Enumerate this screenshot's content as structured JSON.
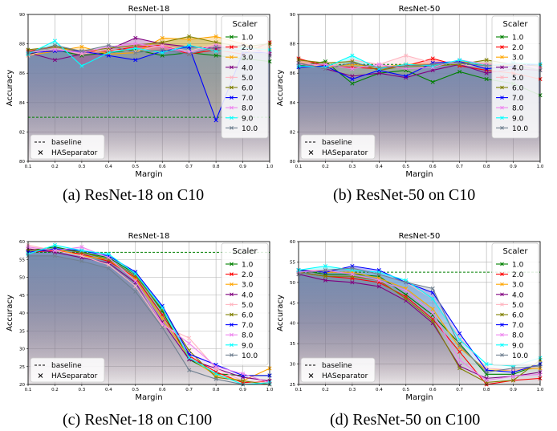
{
  "scaler_colors": [
    "#008000",
    "#ff0000",
    "#ffa500",
    "#800080",
    "#ffb6c1",
    "#808000",
    "#0000ff",
    "#ee82ee",
    "#00ffff",
    "#708090"
  ],
  "captions": [
    "(a) ResNet-18 on C10",
    "(b) ResNet-50 on C10",
    "(c) ResNet-18 on C100",
    "(d) ResNet-50 on C100"
  ],
  "chart_data": [
    {
      "type": "line",
      "title": "ResNet-18",
      "xlabel": "Margin",
      "ylabel": "Accuracy",
      "xlim": [
        0.1,
        1.0
      ],
      "ylim": [
        80,
        90
      ],
      "xticks": [
        "0.1",
        "0.2",
        "0.3",
        "0.4",
        "0.5",
        "0.6",
        "0.7",
        "0.8",
        "0.9",
        "1.0"
      ],
      "yticks": [
        "80",
        "82",
        "84",
        "86",
        "88",
        "90"
      ],
      "legend_title": "Scaler",
      "legend_position": "right",
      "baseline": 83.0,
      "baseline_color": "#008000",
      "x": [
        0.1,
        0.2,
        0.3,
        0.4,
        0.5,
        0.6,
        0.7,
        0.8,
        0.9,
        1.0
      ],
      "series": [
        {
          "name": "1.0",
          "values": [
            87.3,
            87.6,
            87.2,
            87.4,
            87.6,
            87.2,
            87.4,
            87.2,
            87.0,
            86.8
          ]
        },
        {
          "name": "2.0",
          "values": [
            87.5,
            87.8,
            87.5,
            87.5,
            87.8,
            87.9,
            87.3,
            87.6,
            87.3,
            88.1
          ]
        },
        {
          "name": "3.0",
          "values": [
            87.2,
            87.5,
            87.8,
            87.3,
            87.4,
            88.4,
            88.3,
            88.5,
            88.0,
            87.5
          ]
        },
        {
          "name": "4.0",
          "values": [
            87.4,
            86.9,
            87.3,
            87.6,
            88.4,
            88.0,
            87.8,
            87.7,
            87.9,
            87.3
          ]
        },
        {
          "name": "5.0",
          "values": [
            87.2,
            87.7,
            87.3,
            87.6,
            87.5,
            87.9,
            87.5,
            88.0,
            87.6,
            87.6
          ]
        },
        {
          "name": "6.0",
          "values": [
            87.6,
            87.8,
            87.5,
            87.7,
            87.9,
            88.1,
            88.5,
            88.1,
            87.8,
            88.0
          ]
        },
        {
          "name": "7.0",
          "values": [
            87.4,
            87.5,
            87.5,
            87.2,
            86.9,
            87.5,
            87.8,
            82.8,
            87.4,
            87.4
          ]
        },
        {
          "name": "8.0",
          "values": [
            87.4,
            87.6,
            87.4,
            87.8,
            88.0,
            87.8,
            87.4,
            87.9,
            87.6,
            87.4
          ]
        },
        {
          "name": "9.0",
          "values": [
            87.3,
            88.2,
            86.5,
            87.4,
            87.7,
            87.4,
            87.9,
            87.5,
            87.7,
            87.6
          ]
        },
        {
          "name": "10.0",
          "values": [
            87.4,
            87.9,
            87.5,
            87.9,
            87.4,
            87.6,
            87.3,
            87.8,
            87.5,
            87.2
          ]
        }
      ]
    },
    {
      "type": "line",
      "title": "ResNet-50",
      "xlabel": "Margin",
      "ylabel": "Accuracy",
      "xlim": [
        0.1,
        1.0
      ],
      "ylim": [
        80,
        90
      ],
      "xticks": [
        "0.1",
        "0.2",
        "0.3",
        "0.4",
        "0.5",
        "0.6",
        "0.7",
        "0.8",
        "0.9",
        "1.0"
      ],
      "yticks": [
        "80",
        "82",
        "84",
        "86",
        "88",
        "90"
      ],
      "legend_title": "Scaler",
      "legend_position": "right",
      "baseline": 86.6,
      "baseline_color": "#008000",
      "x": [
        0.1,
        0.2,
        0.3,
        0.4,
        0.5,
        0.6,
        0.7,
        0.8,
        0.9,
        1.0
      ],
      "series": [
        {
          "name": "1.0",
          "values": [
            86.5,
            86.8,
            85.3,
            86.0,
            86.2,
            85.4,
            86.1,
            85.6,
            85.3,
            84.5
          ]
        },
        {
          "name": "2.0",
          "values": [
            87.0,
            86.5,
            86.4,
            86.3,
            86.5,
            87.0,
            86.5,
            86.2,
            86.0,
            85.6
          ]
        },
        {
          "name": "3.0",
          "values": [
            86.8,
            86.4,
            86.6,
            86.4,
            86.6,
            86.6,
            86.8,
            86.6,
            86.5,
            86.4
          ]
        },
        {
          "name": "4.0",
          "values": [
            86.7,
            86.3,
            85.8,
            86.0,
            85.7,
            86.2,
            86.6,
            86.0,
            86.3,
            86.2
          ]
        },
        {
          "name": "5.0",
          "values": [
            86.8,
            86.4,
            86.9,
            86.6,
            87.2,
            86.7,
            86.6,
            86.4,
            86.7,
            86.3
          ]
        },
        {
          "name": "6.0",
          "values": [
            86.9,
            86.7,
            86.8,
            86.2,
            86.5,
            86.5,
            86.6,
            86.9,
            86.6,
            86.5
          ]
        },
        {
          "name": "7.0",
          "values": [
            86.4,
            86.5,
            85.6,
            86.2,
            85.8,
            86.7,
            86.8,
            86.3,
            86.5,
            86.6
          ]
        },
        {
          "name": "8.0",
          "values": [
            86.6,
            86.6,
            86.3,
            86.6,
            86.3,
            86.4,
            86.9,
            86.6,
            86.6,
            86.4
          ]
        },
        {
          "name": "9.0",
          "values": [
            86.5,
            86.4,
            87.2,
            86.3,
            86.6,
            86.5,
            86.9,
            86.5,
            86.7,
            86.6
          ]
        },
        {
          "name": "10.0",
          "values": [
            86.7,
            86.3,
            86.7,
            86.4,
            86.5,
            86.6,
            86.7,
            86.5,
            86.6,
            86.2
          ]
        }
      ]
    },
    {
      "type": "line",
      "title": "ResNet-18",
      "xlabel": "Margin",
      "ylabel": "Accuracy",
      "xlim": [
        0.1,
        1.0
      ],
      "ylim": [
        20,
        60
      ],
      "xticks": [
        "0.1",
        "0.2",
        "0.3",
        "0.4",
        "0.5",
        "0.6",
        "0.7",
        "0.8",
        "0.9",
        "1.0"
      ],
      "yticks": [
        "20",
        "25",
        "30",
        "35",
        "40",
        "45",
        "50",
        "55",
        "60"
      ],
      "legend_title": "Scaler",
      "legend_position": "right",
      "baseline": 57.0,
      "baseline_color": "#008000",
      "x": [
        0.1,
        0.2,
        0.3,
        0.4,
        0.5,
        0.6,
        0.7,
        0.8,
        0.9,
        1.0
      ],
      "series": [
        {
          "name": "1.0",
          "values": [
            57.5,
            58.5,
            57.0,
            55.5,
            51.0,
            40.5,
            27.0,
            23.0,
            22.5,
            22.5
          ]
        },
        {
          "name": "2.0",
          "values": [
            57.0,
            57.5,
            56.5,
            54.5,
            50.0,
            39.5,
            28.0,
            23.5,
            20.5,
            21.0
          ]
        },
        {
          "name": "3.0",
          "values": [
            57.0,
            58.0,
            56.0,
            55.0,
            49.5,
            38.5,
            27.5,
            22.5,
            21.0,
            24.5
          ]
        },
        {
          "name": "4.0",
          "values": [
            58.0,
            57.0,
            55.5,
            54.0,
            48.5,
            37.5,
            27.0,
            24.5,
            22.0,
            21.0
          ]
        },
        {
          "name": "5.0",
          "values": [
            59.0,
            57.5,
            56.0,
            53.5,
            47.5,
            36.5,
            33.0,
            24.5,
            21.0,
            20.5
          ]
        },
        {
          "name": "6.0",
          "values": [
            57.5,
            58.0,
            57.0,
            55.0,
            50.5,
            41.0,
            29.5,
            22.0,
            21.0,
            20.0
          ]
        },
        {
          "name": "7.0",
          "values": [
            57.0,
            58.0,
            57.5,
            56.0,
            51.5,
            42.0,
            28.5,
            25.5,
            22.5,
            22.5
          ]
        },
        {
          "name": "8.0",
          "values": [
            58.5,
            57.5,
            58.5,
            55.5,
            49.0,
            37.0,
            31.5,
            25.0,
            23.0,
            20.5
          ]
        },
        {
          "name": "9.0",
          "values": [
            56.5,
            59.0,
            57.5,
            56.5,
            51.0,
            41.5,
            27.5,
            23.0,
            20.0,
            20.5
          ]
        },
        {
          "name": "10.0",
          "values": [
            56.0,
            56.0,
            54.5,
            52.5,
            46.0,
            36.0,
            24.0,
            21.5,
            20.0,
            20.0
          ]
        }
      ]
    },
    {
      "type": "line",
      "title": "ResNet-50",
      "xlabel": "Margin",
      "ylabel": "Accuracy",
      "xlim": [
        0.1,
        1.0
      ],
      "ylim": [
        25,
        60
      ],
      "xticks": [
        "0.1",
        "0.2",
        "0.3",
        "0.4",
        "0.5",
        "0.6",
        "0.7",
        "0.8",
        "0.9",
        "1.0"
      ],
      "yticks": [
        "25",
        "30",
        "35",
        "40",
        "45",
        "50",
        "55",
        "60"
      ],
      "legend_title": "Scaler",
      "legend_position": "right",
      "baseline": 52.5,
      "baseline_color": "#008000",
      "x": [
        0.1,
        0.2,
        0.3,
        0.4,
        0.5,
        0.6,
        0.7,
        0.8,
        0.9,
        1.0
      ],
      "series": [
        {
          "name": "1.0",
          "values": [
            53.0,
            52.0,
            52.0,
            51.5,
            47.0,
            42.0,
            35.0,
            27.5,
            27.5,
            30.0
          ]
        },
        {
          "name": "2.0",
          "values": [
            52.5,
            51.5,
            51.0,
            50.0,
            46.5,
            41.0,
            33.0,
            25.0,
            26.0,
            26.5
          ]
        },
        {
          "name": "3.0",
          "values": [
            53.0,
            52.5,
            52.5,
            51.0,
            48.5,
            43.5,
            34.0,
            28.5,
            28.5,
            29.0
          ]
        },
        {
          "name": "4.0",
          "values": [
            52.0,
            50.5,
            50.0,
            49.0,
            45.5,
            40.0,
            29.5,
            26.5,
            27.0,
            28.0
          ]
        },
        {
          "name": "5.0",
          "values": [
            53.0,
            53.0,
            53.5,
            52.0,
            50.0,
            46.0,
            36.5,
            29.0,
            28.5,
            29.5
          ]
        },
        {
          "name": "6.0",
          "values": [
            52.5,
            51.5,
            51.5,
            50.5,
            46.0,
            40.5,
            29.0,
            25.5,
            26.0,
            31.0
          ]
        },
        {
          "name": "7.0",
          "values": [
            53.0,
            52.5,
            54.0,
            53.0,
            50.0,
            47.5,
            37.5,
            28.5,
            28.0,
            30.0
          ]
        },
        {
          "name": "8.0",
          "values": [
            52.5,
            53.0,
            52.0,
            50.5,
            48.0,
            42.5,
            31.0,
            26.0,
            27.0,
            27.5
          ]
        },
        {
          "name": "9.0",
          "values": [
            53.0,
            54.0,
            53.0,
            52.5,
            50.5,
            46.0,
            36.0,
            30.0,
            29.5,
            31.5
          ]
        },
        {
          "name": "10.0",
          "values": [
            52.0,
            53.0,
            53.5,
            52.0,
            50.0,
            48.5,
            34.5,
            28.0,
            29.0,
            29.5
          ]
        }
      ]
    }
  ],
  "legend_extra": {
    "baseline_label": "baseline",
    "haseparator_label": "HASeparator"
  }
}
